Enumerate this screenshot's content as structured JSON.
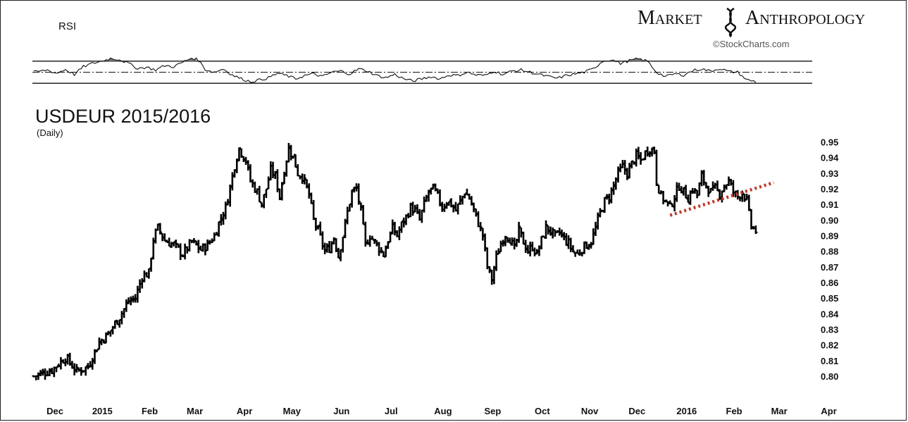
{
  "brand": {
    "word1": "Market",
    "word2": "Anthropology"
  },
  "credit": "©StockCharts.com",
  "rsi": {
    "label": "RSI"
  },
  "chart_data": {
    "type": "ohlc",
    "title": "USDEUR 2015/2016",
    "subtitle": "(Daily)",
    "ylim": [
      0.795,
      0.952
    ],
    "y_ticks": [
      "0.95",
      "0.94",
      "0.93",
      "0.92",
      "0.91",
      "0.90",
      "0.89",
      "0.88",
      "0.87",
      "0.86",
      "0.85",
      "0.84",
      "0.83",
      "0.82",
      "0.81",
      "0.80"
    ],
    "x_ticks": [
      "Dec",
      "2015",
      "Feb",
      "Mar",
      "Apr",
      "May",
      "Jun",
      "Jul",
      "Aug",
      "Sep",
      "Oct",
      "Nov",
      "Dec",
      "2016",
      "Feb",
      "Mar",
      "Apr"
    ],
    "close_anchors": [
      [
        0,
        0.8
      ],
      [
        8,
        0.804
      ],
      [
        14,
        0.812
      ],
      [
        19,
        0.803
      ],
      [
        24,
        0.806
      ],
      [
        29,
        0.822
      ],
      [
        33,
        0.827
      ],
      [
        38,
        0.838
      ],
      [
        42,
        0.848
      ],
      [
        45,
        0.85
      ],
      [
        48,
        0.864
      ],
      [
        51,
        0.866
      ],
      [
        53,
        0.888
      ],
      [
        55,
        0.895
      ],
      [
        58,
        0.887
      ],
      [
        62,
        0.884
      ],
      [
        66,
        0.878
      ],
      [
        70,
        0.886
      ],
      [
        74,
        0.881
      ],
      [
        77,
        0.884
      ],
      [
        80,
        0.89
      ],
      [
        82,
        0.898
      ],
      [
        85,
        0.908
      ],
      [
        87,
        0.921
      ],
      [
        89,
        0.935
      ],
      [
        91,
        0.946
      ],
      [
        94,
        0.938
      ],
      [
        96,
        0.925
      ],
      [
        99,
        0.918
      ],
      [
        101,
        0.91
      ],
      [
        103,
        0.92
      ],
      [
        105,
        0.932
      ],
      [
        107,
        0.928
      ],
      [
        109,
        0.915
      ],
      [
        111,
        0.932
      ],
      [
        113,
        0.946
      ],
      [
        115,
        0.94
      ],
      [
        117,
        0.93
      ],
      [
        119,
        0.928
      ],
      [
        122,
        0.916
      ],
      [
        124,
        0.9
      ],
      [
        126,
        0.893
      ],
      [
        129,
        0.88
      ],
      [
        131,
        0.882
      ],
      [
        133,
        0.889
      ],
      [
        135,
        0.877
      ],
      [
        137,
        0.89
      ],
      [
        139,
        0.905
      ],
      [
        141,
        0.918
      ],
      [
        143,
        0.92
      ],
      [
        145,
        0.905
      ],
      [
        147,
        0.884
      ],
      [
        149,
        0.89
      ],
      [
        151,
        0.886
      ],
      [
        153,
        0.882
      ],
      [
        155,
        0.878
      ],
      [
        157,
        0.887
      ],
      [
        159,
        0.895
      ],
      [
        161,
        0.89
      ],
      [
        163,
        0.897
      ],
      [
        165,
        0.902
      ],
      [
        167,
        0.908
      ],
      [
        169,
        0.906
      ],
      [
        171,
        0.9
      ],
      [
        173,
        0.91
      ],
      [
        175,
        0.918
      ],
      [
        177,
        0.92
      ],
      [
        179,
        0.915
      ],
      [
        181,
        0.908
      ],
      [
        183,
        0.912
      ],
      [
        185,
        0.91
      ],
      [
        187,
        0.906
      ],
      [
        189,
        0.912
      ],
      [
        191,
        0.918
      ],
      [
        193,
        0.914
      ],
      [
        195,
        0.906
      ],
      [
        197,
        0.898
      ],
      [
        199,
        0.89
      ],
      [
        201,
        0.87
      ],
      [
        203,
        0.862
      ],
      [
        205,
        0.876
      ],
      [
        207,
        0.885
      ],
      [
        209,
        0.891
      ],
      [
        211,
        0.888
      ],
      [
        213,
        0.881
      ],
      [
        215,
        0.893
      ],
      [
        217,
        0.886
      ],
      [
        219,
        0.88
      ],
      [
        221,
        0.883
      ],
      [
        223,
        0.878
      ],
      [
        225,
        0.887
      ],
      [
        227,
        0.895
      ],
      [
        229,
        0.893
      ],
      [
        231,
        0.889
      ],
      [
        233,
        0.892
      ],
      [
        235,
        0.888
      ],
      [
        237,
        0.885
      ],
      [
        239,
        0.88
      ],
      [
        241,
        0.878
      ],
      [
        243,
        0.882
      ],
      [
        245,
        0.884
      ],
      [
        247,
        0.886
      ],
      [
        249,
        0.895
      ],
      [
        251,
        0.905
      ],
      [
        253,
        0.912
      ],
      [
        255,
        0.915
      ],
      [
        257,
        0.922
      ],
      [
        259,
        0.93
      ],
      [
        261,
        0.934
      ],
      [
        263,
        0.93
      ],
      [
        265,
        0.936
      ],
      [
        267,
        0.941
      ],
      [
        269,
        0.938
      ],
      [
        271,
        0.943
      ],
      [
        273,
        0.946
      ],
      [
        275,
        0.944
      ],
      [
        276,
        0.925
      ],
      [
        278,
        0.915
      ],
      [
        280,
        0.912
      ],
      [
        282,
        0.908
      ],
      [
        284,
        0.915
      ],
      [
        286,
        0.922
      ],
      [
        288,
        0.918
      ],
      [
        290,
        0.914
      ],
      [
        292,
        0.92
      ],
      [
        294,
        0.916
      ],
      [
        296,
        0.928
      ],
      [
        298,
        0.922
      ],
      [
        300,
        0.918
      ],
      [
        302,
        0.92
      ],
      [
        304,
        0.917
      ],
      [
        306,
        0.922
      ],
      [
        308,
        0.925
      ],
      [
        310,
        0.918
      ],
      [
        312,
        0.915
      ],
      [
        314,
        0.918
      ],
      [
        316,
        0.912
      ],
      [
        318,
        0.896
      ],
      [
        320,
        0.893
      ]
    ],
    "rsi_anchors": [
      [
        0,
        50
      ],
      [
        6,
        54
      ],
      [
        10,
        48
      ],
      [
        14,
        55
      ],
      [
        18,
        46
      ],
      [
        22,
        60
      ],
      [
        26,
        66
      ],
      [
        30,
        70
      ],
      [
        34,
        75
      ],
      [
        38,
        73
      ],
      [
        42,
        66
      ],
      [
        46,
        57
      ],
      [
        50,
        59
      ],
      [
        54,
        54
      ],
      [
        58,
        62
      ],
      [
        62,
        60
      ],
      [
        66,
        68
      ],
      [
        70,
        76
      ],
      [
        73,
        72
      ],
      [
        76,
        55
      ],
      [
        80,
        50
      ],
      [
        84,
        56
      ],
      [
        88,
        45
      ],
      [
        92,
        38
      ],
      [
        96,
        33
      ],
      [
        100,
        36
      ],
      [
        104,
        40
      ],
      [
        108,
        48
      ],
      [
        112,
        44
      ],
      [
        116,
        38
      ],
      [
        120,
        44
      ],
      [
        124,
        47
      ],
      [
        128,
        42
      ],
      [
        132,
        50
      ],
      [
        136,
        52
      ],
      [
        140,
        47
      ],
      [
        144,
        56
      ],
      [
        148,
        52
      ],
      [
        152,
        44
      ],
      [
        156,
        40
      ],
      [
        160,
        46
      ],
      [
        164,
        38
      ],
      [
        168,
        34
      ],
      [
        172,
        38
      ],
      [
        176,
        42
      ],
      [
        180,
        38
      ],
      [
        184,
        45
      ],
      [
        188,
        44
      ],
      [
        192,
        50
      ],
      [
        196,
        45
      ],
      [
        200,
        44
      ],
      [
        204,
        52
      ],
      [
        208,
        46
      ],
      [
        212,
        52
      ],
      [
        216,
        54
      ],
      [
        220,
        50
      ],
      [
        224,
        46
      ],
      [
        228,
        42
      ],
      [
        232,
        39
      ],
      [
        236,
        44
      ],
      [
        240,
        47
      ],
      [
        244,
        50
      ],
      [
        248,
        56
      ],
      [
        252,
        70
      ],
      [
        256,
        73
      ],
      [
        260,
        66
      ],
      [
        264,
        71
      ],
      [
        268,
        74
      ],
      [
        272,
        70
      ],
      [
        276,
        50
      ],
      [
        280,
        42
      ],
      [
        284,
        47
      ],
      [
        288,
        45
      ],
      [
        292,
        53
      ],
      [
        296,
        56
      ],
      [
        300,
        52
      ],
      [
        304,
        57
      ],
      [
        308,
        51
      ],
      [
        312,
        50
      ],
      [
        316,
        36
      ],
      [
        320,
        33
      ]
    ],
    "rsi_levels": [
      70,
      50,
      30
    ],
    "rsi_ylim": [
      20,
      80
    ],
    "trendline": {
      "start": [
        282,
        0.903
      ],
      "end": [
        328,
        0.924
      ],
      "color": "#c0392b"
    },
    "last_index": 320,
    "bars_total": 345
  }
}
